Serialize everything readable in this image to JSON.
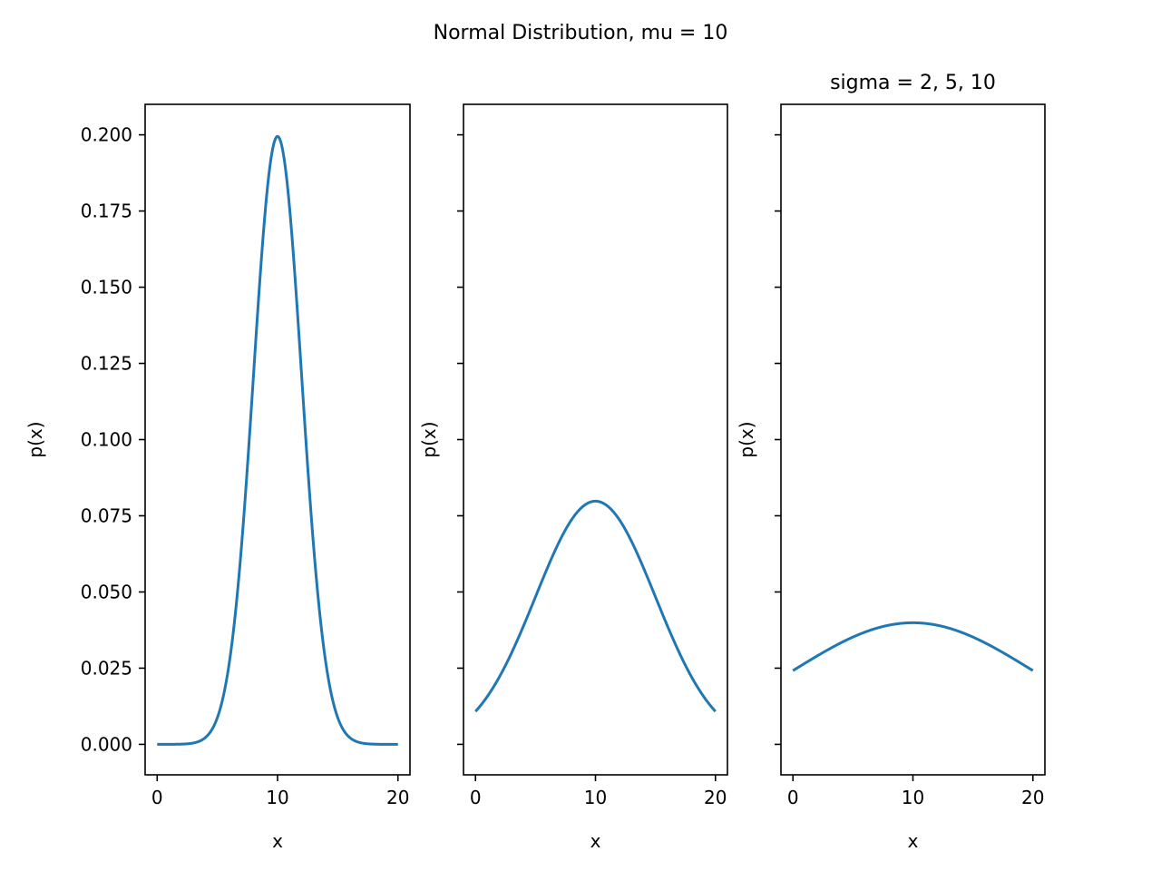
{
  "figure": {
    "suptitle": "Normal Distribution, mu = 10"
  },
  "style": {
    "line_color": "#1f77b4",
    "axes_color": "#000000",
    "background": "#ffffff"
  },
  "chart_data": [
    {
      "type": "line",
      "title": "",
      "xlabel": "x",
      "ylabel": "p(x)",
      "xlim": [
        -1,
        21
      ],
      "ylim": [
        -0.01,
        0.21
      ],
      "xticks": [
        0,
        10,
        20
      ],
      "xtick_labels": [
        "0",
        "10",
        "20"
      ],
      "yticks": [
        0.0,
        0.025,
        0.05,
        0.075,
        0.1,
        0.125,
        0.15,
        0.175,
        0.2
      ],
      "ytick_labels": [
        "0.000",
        "0.025",
        "0.050",
        "0.075",
        "0.100",
        "0.125",
        "0.150",
        "0.175",
        "0.200"
      ],
      "show_ytick_labels": true,
      "grid": false,
      "mu": 10,
      "sigma": 2,
      "x": [
        0,
        2,
        4,
        5,
        6,
        7,
        8,
        9,
        10,
        11,
        12,
        13,
        14,
        15,
        16,
        18,
        20
      ],
      "y": [
        0.0,
        0.0,
        0.0022,
        0.0088,
        0.027,
        0.0648,
        0.121,
        0.176,
        0.1995,
        0.176,
        0.121,
        0.0648,
        0.027,
        0.0088,
        0.0022,
        0.0,
        0.0
      ]
    },
    {
      "type": "line",
      "title": "",
      "xlabel": "x",
      "ylabel": "p(x)",
      "xlim": [
        -1,
        21
      ],
      "ylim": [
        -0.01,
        0.21
      ],
      "xticks": [
        0,
        10,
        20
      ],
      "xtick_labels": [
        "0",
        "10",
        "20"
      ],
      "yticks": [
        0.0,
        0.025,
        0.05,
        0.075,
        0.1,
        0.125,
        0.15,
        0.175,
        0.2
      ],
      "show_ytick_labels": false,
      "grid": false,
      "mu": 10,
      "sigma": 5,
      "x": [
        0,
        2,
        4,
        6,
        8,
        10,
        12,
        14,
        16,
        18,
        20
      ],
      "y": [
        0.0108,
        0.0222,
        0.0388,
        0.0579,
        0.0737,
        0.0798,
        0.0737,
        0.0579,
        0.0388,
        0.0222,
        0.0108
      ]
    },
    {
      "type": "line",
      "title": "sigma = 2, 5, 10",
      "xlabel": "x",
      "ylabel": "p(x)",
      "xlim": [
        -1,
        21
      ],
      "ylim": [
        -0.01,
        0.21
      ],
      "xticks": [
        0,
        10,
        20
      ],
      "xtick_labels": [
        "0",
        "10",
        "20"
      ],
      "yticks": [
        0.0,
        0.025,
        0.05,
        0.075,
        0.1,
        0.125,
        0.15,
        0.175,
        0.2
      ],
      "show_ytick_labels": false,
      "grid": false,
      "mu": 10,
      "sigma": 10,
      "x": [
        0,
        2,
        4,
        6,
        8,
        10,
        12,
        14,
        16,
        18,
        20
      ],
      "y": [
        0.0242,
        0.029,
        0.0333,
        0.0368,
        0.0391,
        0.0399,
        0.0391,
        0.0368,
        0.0333,
        0.029,
        0.0242
      ]
    }
  ]
}
